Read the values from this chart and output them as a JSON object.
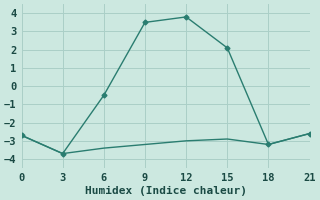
{
  "line1_x": [
    0,
    3,
    6,
    9,
    12,
    15,
    18,
    21
  ],
  "line1_y": [
    -2.7,
    -3.7,
    -0.5,
    3.5,
    3.8,
    2.1,
    -3.2,
    -2.6
  ],
  "line2_x": [
    0,
    3,
    6,
    9,
    12,
    15,
    18,
    21
  ],
  "line2_y": [
    -2.7,
    -3.7,
    -3.4,
    -3.2,
    -3.0,
    -2.9,
    -3.2,
    -2.6
  ],
  "line_color": "#2a7d70",
  "bg_color": "#cce8e0",
  "grid_color": "#aacfc7",
  "xlabel": "Humidex (Indice chaleur)",
  "xlim": [
    0,
    21
  ],
  "ylim": [
    -4.5,
    4.5
  ],
  "xticks": [
    0,
    3,
    6,
    9,
    12,
    15,
    18,
    21
  ],
  "yticks": [
    -4,
    -3,
    -2,
    -1,
    0,
    1,
    2,
    3,
    4
  ],
  "marker": "D",
  "markersize": 2.5,
  "linewidth": 1.0,
  "xlabel_fontsize": 8,
  "tick_fontsize": 7.5
}
